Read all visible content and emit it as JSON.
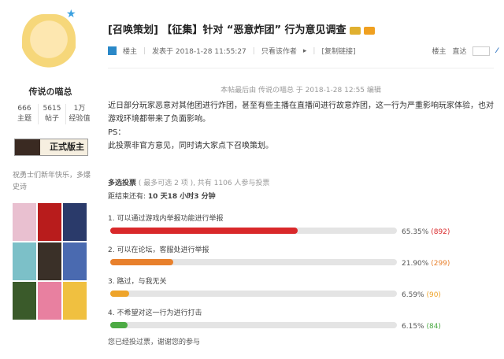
{
  "user": {
    "name": "传说の喵总",
    "stats": [
      {
        "value": "666",
        "label": "主题"
      },
      {
        "value": "5615",
        "label": "帖子"
      },
      {
        "value": "1万",
        "label": "经验值"
      }
    ],
    "badge": "正式版主",
    "signature": "祝勇士们新年快乐，多爆史诗"
  },
  "post": {
    "title": "[召唤策划] 【征集】针对 “恶意炸团” 行为意见调查",
    "author_label": "楼主",
    "posted": "发表于 2018-1-28 11:55:27",
    "only_author": "只看该作者",
    "copy_link": "[复制链接]",
    "floor": "楼主",
    "goto": "直达",
    "goto_value": "",
    "edited": "本帖最后由 传说の喵总 于 2018-1-28 12:55 编辑",
    "body": [
      "近日部分玩家恶意对其他团进行炸团，甚至有些主播在直播间进行故意炸团，这一行为严重影响玩家体验，也对游戏环境都带来了负面影响。",
      "PS：",
      "此投票非官方意见，同时请大家点下召唤策划。"
    ]
  },
  "poll": {
    "type": "多选投票",
    "info": "( 最多可选 2 项 ), 共有 1106 人参与投票",
    "remaining_label": "距结束还有:",
    "remaining": "10 天18 小时3 分钟",
    "voted": "您已经投过票，谢谢您的参与",
    "options": [
      {
        "label": "1. 可以通过游戏内举报功能进行举报",
        "percent": 65.35,
        "percent_text": "65.35%",
        "count": "(892)",
        "color": "#d9282a"
      },
      {
        "label": "2. 可以在论坛，客服处进行举报",
        "percent": 21.9,
        "percent_text": "21.90%",
        "count": "(299)",
        "color": "#e8802c"
      },
      {
        "label": "3. 路过，与我无关",
        "percent": 6.59,
        "percent_text": "6.59%",
        "count": "(90)",
        "color": "#eea42a"
      },
      {
        "label": "4. 不希望对这一行为进行打击",
        "percent": 6.15,
        "percent_text": "6.15%",
        "count": "(84)",
        "color": "#4caa44"
      }
    ]
  }
}
